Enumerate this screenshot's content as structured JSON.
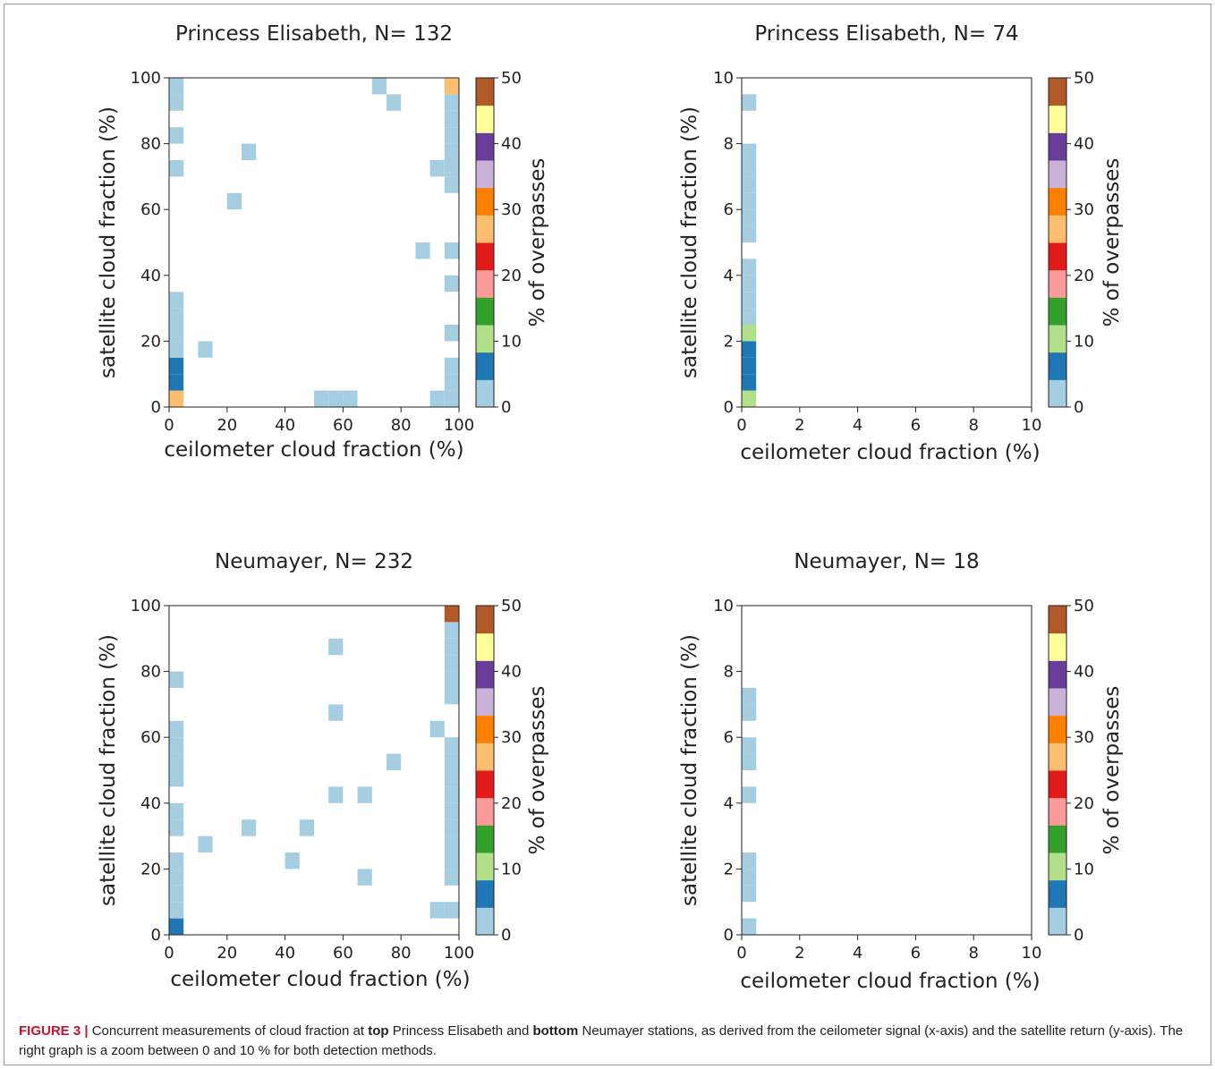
{
  "figure": {
    "colorbar": {
      "label": "% of overpasses",
      "ticks": [
        0,
        10,
        20,
        30,
        40,
        50
      ],
      "bins": [
        0,
        5,
        10,
        15,
        20,
        25,
        30,
        35,
        40,
        45,
        50
      ],
      "colors": [
        "#a6cee3",
        "#1f78b4",
        "#b2df8a",
        "#33a02c",
        "#fb9a99",
        "#e31a1c",
        "#fdbf6f",
        "#ff7f00",
        "#cab2d6",
        "#6a3d9a",
        "#ffff99",
        "#b15928"
      ]
    }
  },
  "chart_data": [
    {
      "type": "heatmap",
      "title": "Princess Elisabeth, N= 132",
      "xlabel": "ceilometer cloud fraction (%)",
      "ylabel": "satellite cloud fraction (%)",
      "xlim": [
        0,
        100
      ],
      "ylim": [
        0,
        100
      ],
      "xticks": [
        0,
        20,
        40,
        60,
        80,
        100
      ],
      "yticks": [
        0,
        20,
        40,
        60,
        80,
        100
      ],
      "bin_size": 5,
      "cells": [
        {
          "x": 0,
          "y": 0,
          "v": 27
        },
        {
          "x": 0,
          "y": 5,
          "v": 7
        },
        {
          "x": 0,
          "y": 10,
          "v": 7
        },
        {
          "x": 0,
          "y": 15,
          "v": 2
        },
        {
          "x": 0,
          "y": 20,
          "v": 2
        },
        {
          "x": 0,
          "y": 25,
          "v": 2
        },
        {
          "x": 0,
          "y": 30,
          "v": 2
        },
        {
          "x": 0,
          "y": 70,
          "v": 2
        },
        {
          "x": 0,
          "y": 80,
          "v": 2
        },
        {
          "x": 0,
          "y": 90,
          "v": 2
        },
        {
          "x": 0,
          "y": 95,
          "v": 2
        },
        {
          "x": 10,
          "y": 15,
          "v": 2
        },
        {
          "x": 20,
          "y": 60,
          "v": 2
        },
        {
          "x": 25,
          "y": 75,
          "v": 2
        },
        {
          "x": 50,
          "y": 0,
          "v": 2
        },
        {
          "x": 55,
          "y": 0,
          "v": 2
        },
        {
          "x": 60,
          "y": 0,
          "v": 2
        },
        {
          "x": 70,
          "y": 95,
          "v": 2
        },
        {
          "x": 75,
          "y": 90,
          "v": 2
        },
        {
          "x": 85,
          "y": 45,
          "v": 2
        },
        {
          "x": 90,
          "y": 0,
          "v": 2
        },
        {
          "x": 90,
          "y": 70,
          "v": 2
        },
        {
          "x": 95,
          "y": 0,
          "v": 2
        },
        {
          "x": 95,
          "y": 5,
          "v": 2
        },
        {
          "x": 95,
          "y": 10,
          "v": 2
        },
        {
          "x": 95,
          "y": 20,
          "v": 2
        },
        {
          "x": 95,
          "y": 35,
          "v": 2
        },
        {
          "x": 95,
          "y": 45,
          "v": 2
        },
        {
          "x": 95,
          "y": 65,
          "v": 2
        },
        {
          "x": 95,
          "y": 70,
          "v": 2
        },
        {
          "x": 95,
          "y": 75,
          "v": 2
        },
        {
          "x": 95,
          "y": 80,
          "v": 2
        },
        {
          "x": 95,
          "y": 85,
          "v": 2
        },
        {
          "x": 95,
          "y": 90,
          "v": 2
        },
        {
          "x": 95,
          "y": 95,
          "v": 27
        }
      ]
    },
    {
      "type": "heatmap",
      "title": "Princess Elisabeth, N= 74",
      "xlabel": "ceilometer cloud fraction (%)",
      "ylabel": "satellite cloud fraction (%)",
      "xlim": [
        0,
        10
      ],
      "ylim": [
        0,
        10
      ],
      "xticks": [
        0,
        2,
        4,
        6,
        8,
        10
      ],
      "yticks": [
        0,
        2,
        4,
        6,
        8,
        10
      ],
      "bin_size": 0.5,
      "cells": [
        {
          "x": 0,
          "y": 0,
          "v": 12
        },
        {
          "x": 0,
          "y": 0.5,
          "v": 7
        },
        {
          "x": 0,
          "y": 1,
          "v": 7
        },
        {
          "x": 0,
          "y": 1.5,
          "v": 7
        },
        {
          "x": 0,
          "y": 2,
          "v": 12
        },
        {
          "x": 0,
          "y": 2.5,
          "v": 2
        },
        {
          "x": 0,
          "y": 3,
          "v": 2
        },
        {
          "x": 0,
          "y": 3.5,
          "v": 2
        },
        {
          "x": 0,
          "y": 4,
          "v": 2
        },
        {
          "x": 0,
          "y": 5,
          "v": 2
        },
        {
          "x": 0,
          "y": 5.5,
          "v": 2
        },
        {
          "x": 0,
          "y": 6,
          "v": 2
        },
        {
          "x": 0,
          "y": 6.5,
          "v": 2
        },
        {
          "x": 0,
          "y": 7,
          "v": 2
        },
        {
          "x": 0,
          "y": 7.5,
          "v": 2
        },
        {
          "x": 0,
          "y": 9,
          "v": 2
        }
      ]
    },
    {
      "type": "heatmap",
      "title": "Neumayer, N= 232",
      "xlabel": "ceilometer cloud fraction (%)",
      "ylabel": "satellite cloud fraction (%)",
      "xlim": [
        0,
        100
      ],
      "ylim": [
        0,
        100
      ],
      "xticks": [
        0,
        20,
        40,
        60,
        80,
        100
      ],
      "yticks": [
        0,
        20,
        40,
        60,
        80,
        100
      ],
      "bin_size": 5,
      "cells": [
        {
          "x": 0,
          "y": 0,
          "v": 7
        },
        {
          "x": 0,
          "y": 5,
          "v": 2
        },
        {
          "x": 0,
          "y": 10,
          "v": 2
        },
        {
          "x": 0,
          "y": 15,
          "v": 2
        },
        {
          "x": 0,
          "y": 20,
          "v": 2
        },
        {
          "x": 0,
          "y": 30,
          "v": 2
        },
        {
          "x": 0,
          "y": 35,
          "v": 2
        },
        {
          "x": 0,
          "y": 45,
          "v": 2
        },
        {
          "x": 0,
          "y": 50,
          "v": 2
        },
        {
          "x": 0,
          "y": 55,
          "v": 2
        },
        {
          "x": 0,
          "y": 60,
          "v": 2
        },
        {
          "x": 0,
          "y": 75,
          "v": 2
        },
        {
          "x": 10,
          "y": 25,
          "v": 2
        },
        {
          "x": 25,
          "y": 30,
          "v": 2
        },
        {
          "x": 40,
          "y": 20,
          "v": 2
        },
        {
          "x": 45,
          "y": 30,
          "v": 2
        },
        {
          "x": 55,
          "y": 40,
          "v": 2
        },
        {
          "x": 55,
          "y": 65,
          "v": 2
        },
        {
          "x": 55,
          "y": 85,
          "v": 2
        },
        {
          "x": 65,
          "y": 15,
          "v": 2
        },
        {
          "x": 65,
          "y": 40,
          "v": 2
        },
        {
          "x": 75,
          "y": 50,
          "v": 2
        },
        {
          "x": 90,
          "y": 5,
          "v": 2
        },
        {
          "x": 90,
          "y": 60,
          "v": 2
        },
        {
          "x": 95,
          "y": 5,
          "v": 2
        },
        {
          "x": 95,
          "y": 15,
          "v": 2
        },
        {
          "x": 95,
          "y": 20,
          "v": 2
        },
        {
          "x": 95,
          "y": 25,
          "v": 2
        },
        {
          "x": 95,
          "y": 30,
          "v": 2
        },
        {
          "x": 95,
          "y": 35,
          "v": 2
        },
        {
          "x": 95,
          "y": 40,
          "v": 2
        },
        {
          "x": 95,
          "y": 45,
          "v": 2
        },
        {
          "x": 95,
          "y": 50,
          "v": 2
        },
        {
          "x": 95,
          "y": 55,
          "v": 2
        },
        {
          "x": 95,
          "y": 70,
          "v": 2
        },
        {
          "x": 95,
          "y": 75,
          "v": 2
        },
        {
          "x": 95,
          "y": 80,
          "v": 2
        },
        {
          "x": 95,
          "y": 85,
          "v": 2
        },
        {
          "x": 95,
          "y": 90,
          "v": 2
        },
        {
          "x": 95,
          "y": 95,
          "v": 52
        }
      ]
    },
    {
      "type": "heatmap",
      "title": "Neumayer, N= 18",
      "xlabel": "ceilometer cloud fraction (%)",
      "ylabel": "satellite cloud fraction (%)",
      "xlim": [
        0,
        10
      ],
      "ylim": [
        0,
        10
      ],
      "xticks": [
        0,
        2,
        4,
        6,
        8,
        10
      ],
      "yticks": [
        0,
        2,
        4,
        6,
        8,
        10
      ],
      "bin_size": 0.5,
      "cells": [
        {
          "x": 0,
          "y": 0,
          "v": 2
        },
        {
          "x": 0,
          "y": 1,
          "v": 2
        },
        {
          "x": 0,
          "y": 1.5,
          "v": 2
        },
        {
          "x": 0,
          "y": 2,
          "v": 2
        },
        {
          "x": 0,
          "y": 4,
          "v": 2
        },
        {
          "x": 0,
          "y": 5,
          "v": 2
        },
        {
          "x": 0,
          "y": 5.5,
          "v": 2
        },
        {
          "x": 0,
          "y": 6.5,
          "v": 2
        },
        {
          "x": 0,
          "y": 7,
          "v": 2
        }
      ]
    }
  ],
  "caption": {
    "label": "FIGURE 3 |",
    "part1": "Concurrent measurements of cloud fraction at",
    "bold1": "top",
    "part2": "Princess Elisabeth and",
    "bold2": "bottom",
    "part3": "Neumayer stations, as derived from the ceilometer signal (x-axis) and the satellite return (y-axis). The right graph is a zoom between 0 and 10 % for both detection methods."
  }
}
